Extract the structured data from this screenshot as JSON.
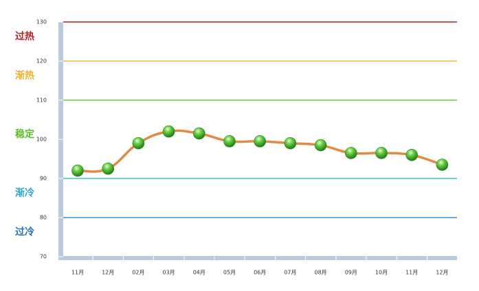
{
  "chart_data": {
    "type": "line",
    "categories": [
      "11月",
      "12月",
      "02月",
      "03月",
      "04月",
      "05月",
      "06月",
      "07月",
      "08月",
      "09月",
      "10月",
      "11月",
      "12月"
    ],
    "values": [
      92,
      92.5,
      99,
      102,
      101.5,
      99.5,
      99.5,
      99,
      98.5,
      96.5,
      96.5,
      96,
      93.5
    ],
    "color": "#e08a45",
    "ylim": [
      70,
      130
    ],
    "yticks": [
      70,
      80,
      90,
      100,
      110,
      120,
      130
    ],
    "reference_lines": [
      {
        "value": 130,
        "color": "#b22222"
      },
      {
        "value": 120,
        "color": "#f5b342"
      },
      {
        "value": 110,
        "color": "#6cc93a"
      },
      {
        "value": 90,
        "color": "#3cc6c0"
      },
      {
        "value": 80,
        "color": "#3a8fd9"
      }
    ],
    "zones": [
      {
        "label": "过热",
        "range": [
          120,
          130
        ],
        "color": "#b22222"
      },
      {
        "label": "渐热",
        "range": [
          110,
          120
        ],
        "color": "#f0b030"
      },
      {
        "label": "稳定",
        "range": [
          90,
          110
        ],
        "color": "#5bbf2a"
      },
      {
        "label": "渐冷",
        "range": [
          80,
          90
        ],
        "color": "#2aa7d6"
      },
      {
        "label": "过冷",
        "range": [
          70,
          80
        ],
        "color": "#1f6fb2"
      }
    ]
  }
}
